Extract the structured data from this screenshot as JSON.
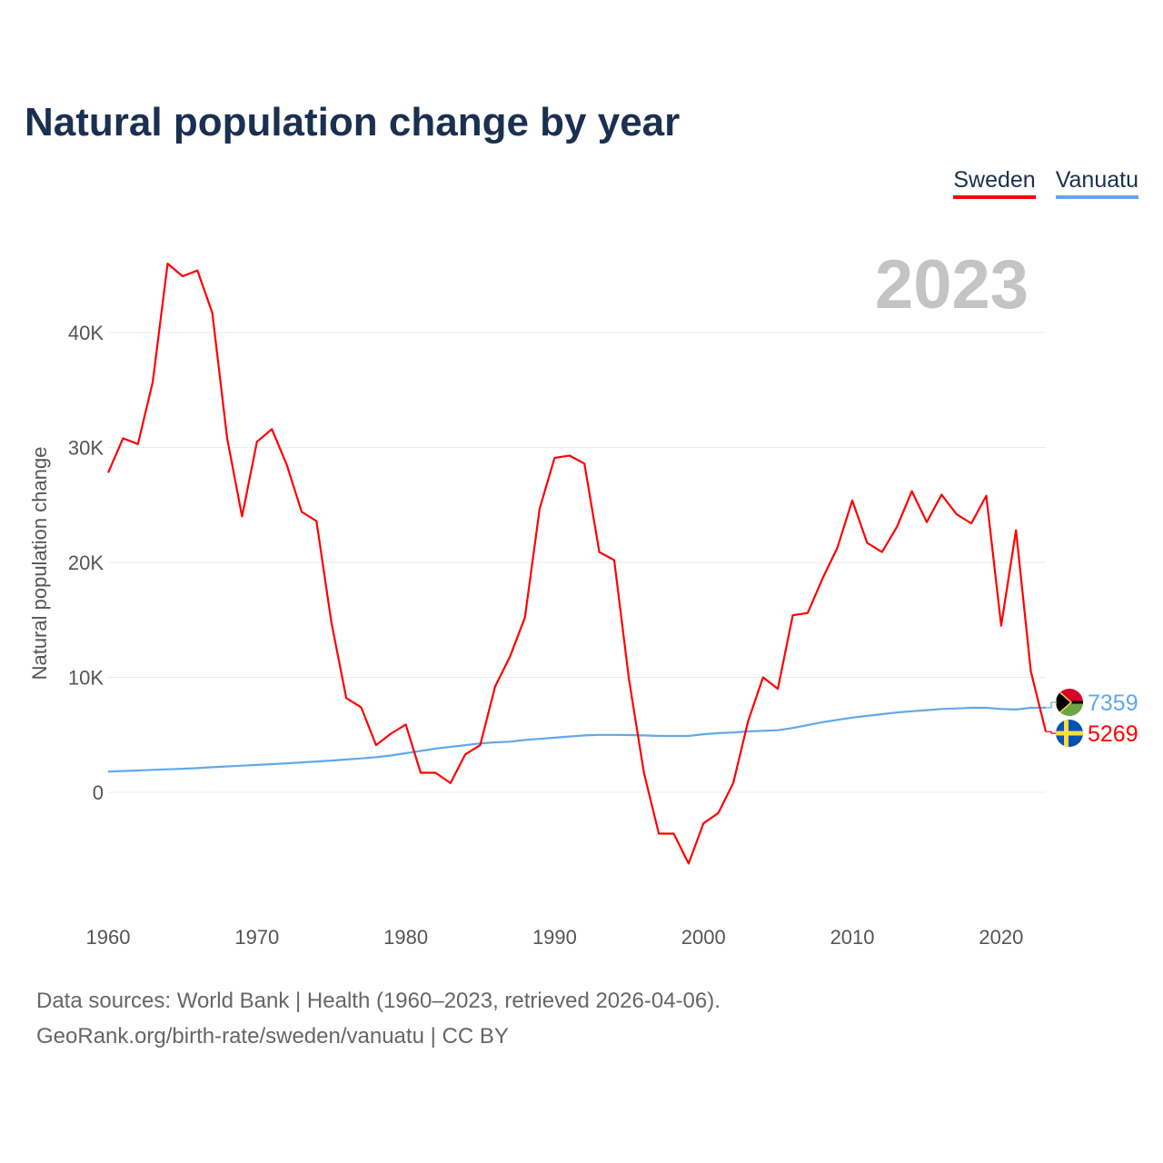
{
  "chart_data": {
    "type": "line",
    "title": "Natural population change by year",
    "ylabel": "Natural population change",
    "xlabel": "",
    "highlight_year": "2023",
    "xlim": [
      1960,
      2023
    ],
    "ylim": [
      -10000,
      48000
    ],
    "x_ticks": [
      1960,
      1970,
      1980,
      1990,
      2000,
      2010,
      2020
    ],
    "y_ticks": [
      {
        "v": 0,
        "label": "0"
      },
      {
        "v": 10000,
        "label": "10K"
      },
      {
        "v": 20000,
        "label": "20K"
      },
      {
        "v": 30000,
        "label": "30K"
      },
      {
        "v": 40000,
        "label": "40K"
      }
    ],
    "grid": true,
    "legend_position": "top-right",
    "x": [
      1960,
      1961,
      1962,
      1963,
      1964,
      1965,
      1966,
      1967,
      1968,
      1969,
      1970,
      1971,
      1972,
      1973,
      1974,
      1975,
      1976,
      1977,
      1978,
      1979,
      1980,
      1981,
      1982,
      1983,
      1984,
      1985,
      1986,
      1987,
      1988,
      1989,
      1990,
      1991,
      1992,
      1993,
      1994,
      1995,
      1996,
      1997,
      1998,
      1999,
      2000,
      2001,
      2002,
      2003,
      2004,
      2005,
      2006,
      2007,
      2008,
      2009,
      2010,
      2011,
      2012,
      2013,
      2014,
      2015,
      2016,
      2017,
      2018,
      2019,
      2020,
      2021,
      2022,
      2023
    ],
    "series": [
      {
        "name": "Sweden",
        "color": "#ff0000",
        "end_label": "5269",
        "values": [
          27800,
          30800,
          30300,
          35700,
          46000,
          44900,
          45400,
          41700,
          30800,
          24000,
          30500,
          31600,
          28500,
          24400,
          23600,
          14800,
          8200,
          7400,
          4100,
          5100,
          5900,
          1700,
          1700,
          800,
          3300,
          4100,
          9200,
          11800,
          15200,
          24700,
          29100,
          29300,
          28600,
          20900,
          20200,
          9800,
          1700,
          -3600,
          -3600,
          -6200,
          -2700,
          -1800,
          800,
          6200,
          10000,
          9000,
          15400,
          15600,
          18600,
          21300,
          25400,
          21700,
          20900,
          23100,
          26200,
          23500,
          25900,
          24200,
          23400,
          25800,
          14500,
          22800,
          10500,
          5269
        ]
      },
      {
        "name": "Vanuatu",
        "color": "#62a8ea",
        "end_label": "7359",
        "values": [
          1800,
          1850,
          1900,
          1950,
          2000,
          2050,
          2100,
          2180,
          2250,
          2320,
          2380,
          2450,
          2520,
          2600,
          2680,
          2760,
          2850,
          2950,
          3050,
          3200,
          3400,
          3600,
          3800,
          3950,
          4100,
          4250,
          4350,
          4400,
          4550,
          4650,
          4750,
          4850,
          4950,
          5000,
          5000,
          4980,
          4950,
          4900,
          4900,
          4900,
          5050,
          5150,
          5200,
          5300,
          5350,
          5400,
          5600,
          5850,
          6100,
          6300,
          6500,
          6650,
          6800,
          6950,
          7050,
          7150,
          7250,
          7300,
          7350,
          7350,
          7250,
          7200,
          7350,
          7359
        ]
      }
    ]
  },
  "footer": {
    "line1": "Data sources: World Bank | Health (1960–2023, retrieved 2026-04-06).",
    "line2": "GeoRank.org/birth-rate/sweden/vanuatu | CC BY"
  }
}
